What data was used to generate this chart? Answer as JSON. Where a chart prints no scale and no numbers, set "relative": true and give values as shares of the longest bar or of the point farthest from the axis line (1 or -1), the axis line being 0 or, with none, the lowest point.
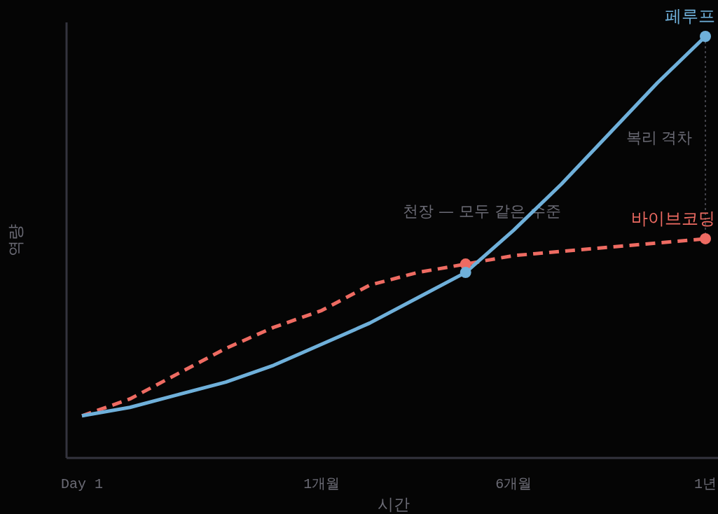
{
  "chart_data": {
    "type": "line",
    "relative": true,
    "xlabel": "시간",
    "ylabel": "역량",
    "legend": false,
    "categories": [
      "Day 1",
      null,
      null,
      null,
      null,
      "1개월",
      null,
      null,
      null,
      "6개월",
      null,
      null,
      null,
      "1년"
    ],
    "series": [
      {
        "name": "바이브코딩",
        "color": "#ee6b62",
        "line_style": "dashed",
        "values": [
          0.1,
          0.14,
          0.2,
          0.26,
          0.31,
          0.35,
          0.41,
          0.44,
          0.46,
          0.48,
          0.49,
          0.5,
          0.51,
          0.52
        ]
      },
      {
        "name": "페루프",
        "color": "#6fb0da",
        "line_style": "solid",
        "values": [
          0.1,
          0.12,
          0.15,
          0.18,
          0.22,
          0.27,
          0.32,
          0.38,
          0.44,
          0.54,
          0.65,
          0.77,
          0.89,
          1
        ]
      },
      {
        "type": "scatter",
        "color": "#ee6b62",
        "marker": "circle",
        "values": [
          null,
          null,
          null,
          null,
          null,
          null,
          null,
          null,
          0.46,
          null,
          null,
          null,
          null,
          0.52
        ]
      },
      {
        "type": "scatter",
        "color": "#6fb0da",
        "marker": "circle",
        "values": [
          null,
          null,
          null,
          null,
          null,
          null,
          null,
          null,
          0.44,
          null,
          null,
          null,
          null,
          1
        ]
      }
    ],
    "annotations": [
      "복리 격차",
      "천장 — 모두 같은 수준"
    ]
  }
}
